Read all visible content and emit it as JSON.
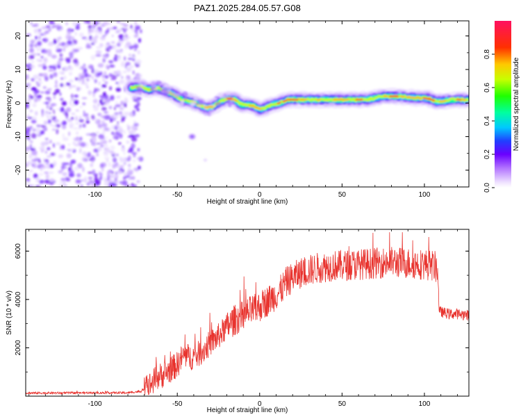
{
  "chart_data": [
    {
      "type": "heatmap",
      "title": "PAZ1.2025.284.05.57.G08",
      "xlabel": "Height of straight line (km)",
      "ylabel": "Frequency (Hz)",
      "xlim": [
        -142,
        127
      ],
      "ylim": [
        -25,
        24.5
      ],
      "xticks": [
        -100,
        -50,
        0,
        50,
        100
      ],
      "yticks": [
        -20,
        -10,
        0,
        10,
        20
      ],
      "colorbar": {
        "label": "Normalized spectral amplitude",
        "range": [
          0.0,
          1.0
        ],
        "ticks": [
          0.0,
          0.2,
          0.4,
          0.6,
          0.8
        ]
      },
      "ridge": {
        "x": [
          -78,
          -72,
          -68,
          -62,
          -57,
          -52,
          -47,
          -42,
          -37,
          -32,
          -28,
          -24,
          -19,
          -15,
          -11,
          -7,
          -3,
          0,
          3,
          7,
          12,
          17,
          25,
          35,
          45,
          55,
          65,
          75,
          85,
          95,
          102,
          107,
          111,
          116,
          122,
          127
        ],
        "y": [
          4.5,
          5.0,
          4.0,
          4.5,
          3.5,
          2.5,
          1.0,
          0.5,
          -0.5,
          -1.5,
          -1.0,
          0.5,
          1.5,
          1.0,
          -0.5,
          -0.5,
          -1.0,
          -2.0,
          -1.5,
          -0.5,
          0.0,
          1.0,
          1.0,
          1.0,
          1.0,
          1.0,
          1.0,
          2.0,
          2.0,
          1.5,
          1.5,
          0.5,
          0.5,
          1.0,
          1.0,
          1.0
        ]
      },
      "noise_region": {
        "x_from": -142,
        "x_to": -72
      },
      "stray_blobs": [
        {
          "x": -41,
          "y": -10
        },
        {
          "x": -33,
          "y": -17
        }
      ]
    },
    {
      "type": "line",
      "title": "",
      "xlabel": "Height of straight line (km)",
      "ylabel": "SNR (10 * v/v)",
      "xlim": [
        -142,
        127
      ],
      "ylim": [
        0,
        6900
      ],
      "xticks": [
        -100,
        -50,
        0,
        50,
        100
      ],
      "yticks": [
        2000,
        4000,
        6000
      ],
      "color": "#e8332e",
      "series": [
        {
          "name": "SNR",
          "profile_x": [
            -142,
            -80,
            -72,
            -66,
            -62,
            -58,
            -54,
            -50,
            -46,
            -42,
            -38,
            -34,
            -30,
            -26,
            -22,
            -18,
            -14,
            -10,
            -6,
            -2,
            0,
            4,
            8,
            12,
            16,
            20,
            25,
            30,
            35,
            40,
            45,
            50,
            60,
            70,
            80,
            90,
            100,
            105,
            108,
            109,
            115,
            120,
            127
          ],
          "profile_y": [
            130,
            140,
            200,
            500,
            800,
            900,
            1100,
            1300,
            1700,
            1600,
            1700,
            1900,
            2200,
            2400,
            2700,
            3000,
            3200,
            3300,
            3500,
            3600,
            3700,
            3900,
            4100,
            4300,
            4700,
            4900,
            5100,
            5200,
            5300,
            5350,
            5400,
            5400,
            5450,
            5500,
            5550,
            5500,
            5450,
            5400,
            5300,
            3500,
            3400,
            3400,
            3350
          ]
        }
      ]
    }
  ]
}
